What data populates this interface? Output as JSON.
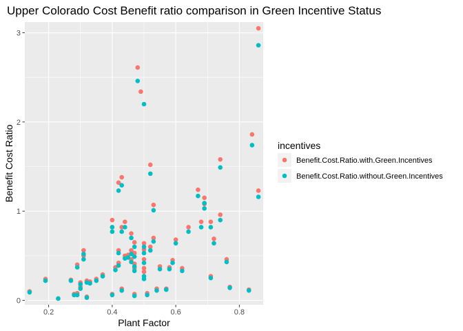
{
  "chart_data": {
    "type": "scatter",
    "title": "Upper Colorado Cost Benefit ratio comparison in Green Incentive Status",
    "xlabel": "Plant Factor",
    "ylabel": "Benefit Cost Ratio",
    "xlim": [
      0.125,
      0.875
    ],
    "ylim": [
      -0.05,
      3.12
    ],
    "xticks": [
      0.2,
      0.4,
      0.6,
      0.8
    ],
    "xtick_labels": [
      "0.2",
      "0.4",
      "0.6",
      "0.8"
    ],
    "yticks": [
      0,
      1,
      2,
      3
    ],
    "ytick_labels": [
      "0",
      "1",
      "2",
      "3"
    ],
    "grid": true,
    "legend": {
      "title": "incentives",
      "position": "right"
    },
    "series": [
      {
        "name": "Benefit.Cost.Ratio.with.Green.Incentives",
        "color": "#F8766D",
        "points": [
          [
            0.14,
            0.1
          ],
          [
            0.19,
            0.24
          ],
          [
            0.23,
            0.02
          ],
          [
            0.27,
            0.23
          ],
          [
            0.28,
            0.07
          ],
          [
            0.29,
            0.08
          ],
          [
            0.29,
            0.4
          ],
          [
            0.3,
            0.2
          ],
          [
            0.3,
            0.15
          ],
          [
            0.31,
            0.56
          ],
          [
            0.31,
            0.5
          ],
          [
            0.32,
            0.04
          ],
          [
            0.32,
            0.22
          ],
          [
            0.33,
            0.21
          ],
          [
            0.35,
            0.24
          ],
          [
            0.37,
            0.29
          ],
          [
            0.4,
            0.9
          ],
          [
            0.4,
            0.82
          ],
          [
            0.4,
            0.07
          ],
          [
            0.41,
            0.37
          ],
          [
            0.42,
            1.32
          ],
          [
            0.42,
            0.56
          ],
          [
            0.42,
            0.42
          ],
          [
            0.43,
            1.38
          ],
          [
            0.43,
            0.82
          ],
          [
            0.43,
            0.13
          ],
          [
            0.44,
            0.88
          ],
          [
            0.44,
            0.5
          ],
          [
            0.45,
            0.51
          ],
          [
            0.46,
            0.75
          ],
          [
            0.46,
            0.56
          ],
          [
            0.46,
            0.46
          ],
          [
            0.47,
            0.65
          ],
          [
            0.47,
            0.53
          ],
          [
            0.47,
            0.41
          ],
          [
            0.47,
            0.36
          ],
          [
            0.47,
            0.07
          ],
          [
            0.48,
            2.61
          ],
          [
            0.49,
            2.34
          ],
          [
            0.5,
            0.64
          ],
          [
            0.5,
            0.57
          ],
          [
            0.5,
            0.46
          ],
          [
            0.5,
            0.36
          ],
          [
            0.5,
            0.32
          ],
          [
            0.51,
            0.08
          ],
          [
            0.52,
            1.52
          ],
          [
            0.52,
            0.6
          ],
          [
            0.53,
            1.07
          ],
          [
            0.53,
            0.7
          ],
          [
            0.54,
            0.13
          ],
          [
            0.55,
            0.38
          ],
          [
            0.57,
            0.13
          ],
          [
            0.58,
            0.37
          ],
          [
            0.59,
            0.45
          ],
          [
            0.6,
            0.68
          ],
          [
            0.62,
            0.36
          ],
          [
            0.64,
            0.82
          ],
          [
            0.67,
            1.24
          ],
          [
            0.68,
            0.88
          ],
          [
            0.69,
            1.15
          ],
          [
            0.69,
            1.08
          ],
          [
            0.71,
            0.88
          ],
          [
            0.71,
            0.27
          ],
          [
            0.72,
            0.69
          ],
          [
            0.74,
            1.58
          ],
          [
            0.74,
            0.96
          ],
          [
            0.76,
            0.46
          ],
          [
            0.77,
            0.15
          ],
          [
            0.83,
            0.12
          ],
          [
            0.84,
            1.86
          ],
          [
            0.86,
            3.05
          ],
          [
            0.86,
            1.23
          ]
        ]
      },
      {
        "name": "Benefit.Cost.Ratio.without.Green.Incentives",
        "color": "#00BFC4",
        "points": [
          [
            0.14,
            0.09
          ],
          [
            0.19,
            0.22
          ],
          [
            0.23,
            0.02
          ],
          [
            0.27,
            0.22
          ],
          [
            0.28,
            0.06
          ],
          [
            0.29,
            0.06
          ],
          [
            0.29,
            0.37
          ],
          [
            0.3,
            0.18
          ],
          [
            0.3,
            0.13
          ],
          [
            0.31,
            0.52
          ],
          [
            0.31,
            0.46
          ],
          [
            0.32,
            0.03
          ],
          [
            0.32,
            0.2
          ],
          [
            0.33,
            0.19
          ],
          [
            0.35,
            0.22
          ],
          [
            0.37,
            0.27
          ],
          [
            0.4,
            0.82
          ],
          [
            0.4,
            0.77
          ],
          [
            0.4,
            0.06
          ],
          [
            0.41,
            0.34
          ],
          [
            0.42,
            1.23
          ],
          [
            0.42,
            0.53
          ],
          [
            0.42,
            0.39
          ],
          [
            0.43,
            1.29
          ],
          [
            0.43,
            0.77
          ],
          [
            0.43,
            0.11
          ],
          [
            0.44,
            0.82
          ],
          [
            0.44,
            0.47
          ],
          [
            0.45,
            0.48
          ],
          [
            0.46,
            0.7
          ],
          [
            0.46,
            0.52
          ],
          [
            0.46,
            0.43
          ],
          [
            0.47,
            0.6
          ],
          [
            0.47,
            0.49
          ],
          [
            0.47,
            0.38
          ],
          [
            0.47,
            0.33
          ],
          [
            0.47,
            0.05
          ],
          [
            0.48,
            2.46
          ],
          [
            0.5,
            2.2
          ],
          [
            0.5,
            0.6
          ],
          [
            0.5,
            0.53
          ],
          [
            0.5,
            0.42
          ],
          [
            0.5,
            0.27
          ],
          [
            0.5,
            0.24
          ],
          [
            0.51,
            0.06
          ],
          [
            0.52,
            1.42
          ],
          [
            0.52,
            0.56
          ],
          [
            0.53,
            1.01
          ],
          [
            0.53,
            0.66
          ],
          [
            0.54,
            0.11
          ],
          [
            0.55,
            0.35
          ],
          [
            0.57,
            0.12
          ],
          [
            0.58,
            0.35
          ],
          [
            0.59,
            0.42
          ],
          [
            0.6,
            0.64
          ],
          [
            0.62,
            0.33
          ],
          [
            0.64,
            0.77
          ],
          [
            0.67,
            1.17
          ],
          [
            0.68,
            0.82
          ],
          [
            0.69,
            1.09
          ],
          [
            0.69,
            1.03
          ],
          [
            0.71,
            0.82
          ],
          [
            0.71,
            0.25
          ],
          [
            0.72,
            0.64
          ],
          [
            0.74,
            1.49
          ],
          [
            0.74,
            0.9
          ],
          [
            0.76,
            0.43
          ],
          [
            0.77,
            0.14
          ],
          [
            0.83,
            0.11
          ],
          [
            0.84,
            1.74
          ],
          [
            0.86,
            2.86
          ],
          [
            0.86,
            1.16
          ]
        ]
      }
    ]
  }
}
